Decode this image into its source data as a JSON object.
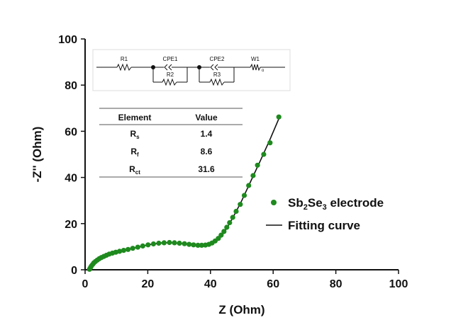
{
  "chart_data": {
    "type": "scatter",
    "title": "",
    "xlabel": "Z (Ohm)",
    "ylabel": "-Z'' (Ohm)",
    "xlim": [
      0,
      100
    ],
    "ylim": [
      0,
      100
    ],
    "x_ticks": [
      "0",
      "20",
      "40",
      "60",
      "80",
      "100"
    ],
    "y_ticks": [
      "0",
      "20",
      "40",
      "60",
      "80",
      "100"
    ],
    "grid": false,
    "legend_position": "right",
    "series": [
      {
        "name": "Sb2Se3 electrode",
        "label_parts": [
          {
            "t": "Sb",
            "sub": false
          },
          {
            "t": "2",
            "sub": true
          },
          {
            "t": "Se",
            "sub": false
          },
          {
            "t": "3",
            "sub": true
          },
          {
            "t": " electrode",
            "sub": false
          }
        ],
        "marker": "circle",
        "color": "#1e8a1e",
        "x": [
          1.4,
          1.7,
          2.0,
          2.4,
          2.8,
          3.3,
          3.9,
          4.5,
          5.2,
          6.0,
          6.8,
          7.7,
          8.7,
          9.8,
          11.0,
          12.3,
          13.7,
          15.2,
          16.8,
          18.4,
          20.1,
          21.8,
          23.5,
          25.2,
          26.9,
          28.5,
          30.1,
          31.7,
          33.2,
          34.6,
          36.0,
          37.2,
          38.4,
          39.5,
          40.5,
          41.5,
          42.5,
          43.4,
          44.3,
          45.2,
          46.1,
          47.1,
          48.2,
          49.5,
          50.8,
          52.2,
          53.6,
          55.0,
          57.0,
          59.0,
          61.8
        ],
        "y": [
          0.2,
          0.9,
          1.6,
          2.3,
          3.0,
          3.6,
          4.2,
          4.8,
          5.3,
          5.8,
          6.3,
          6.8,
          7.2,
          7.6,
          8.0,
          8.4,
          8.8,
          9.3,
          9.8,
          10.3,
          10.8,
          11.2,
          11.5,
          11.7,
          11.8,
          11.7,
          11.5,
          11.3,
          11.0,
          10.8,
          10.6,
          10.6,
          10.7,
          11.0,
          11.6,
          12.5,
          13.6,
          15.0,
          16.6,
          18.4,
          20.4,
          22.7,
          25.3,
          28.3,
          32.2,
          36.5,
          40.8,
          45.3,
          50.0,
          55.0,
          66.2
        ]
      },
      {
        "name": "Fitting curve",
        "marker": "none",
        "color": "#111111",
        "x": [
          1.4,
          3.0,
          5.0,
          8.0,
          12.0,
          16.0,
          20.0,
          24.0,
          27.0,
          30.0,
          33.0,
          36.0,
          38.0,
          40.0,
          42.0,
          44.0,
          46.0,
          48.0,
          50.0,
          53.0,
          56.0,
          59.0,
          62.0
        ],
        "y": [
          0.0,
          3.8,
          5.1,
          6.6,
          8.2,
          9.5,
          10.8,
          11.6,
          11.8,
          11.5,
          11.0,
          10.6,
          10.6,
          11.1,
          12.6,
          15.5,
          19.8,
          24.8,
          30.0,
          38.8,
          47.5,
          56.5,
          66.0
        ]
      }
    ],
    "inset_table": {
      "headers": [
        "Element",
        "Value"
      ],
      "rows": [
        {
          "element": "R",
          "subscript": "s",
          "value": "1.4"
        },
        {
          "element": "R",
          "subscript": "f",
          "value": "8.6"
        },
        {
          "element": "R",
          "subscript": "ct",
          "value": "31.6"
        }
      ]
    },
    "circuit_labels": {
      "r1": "R1",
      "cpe1": "CPE1",
      "r2": "R2",
      "cpe2": "CPE2",
      "r3": "R3",
      "w1": "W1",
      "w1_sub": "o"
    }
  }
}
